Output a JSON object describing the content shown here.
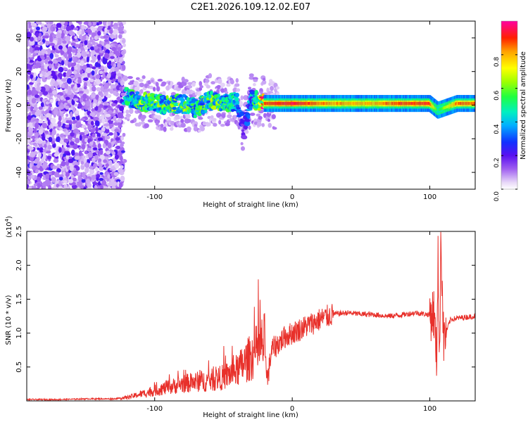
{
  "title": "C2E1.2026.109.12.02.E07",
  "chart_data": [
    {
      "type": "heatmap",
      "title": "C2E1.2026.109.12.02.E07",
      "xlabel": "Height of straight line (km)",
      "ylabel": "Frequency (Hz)",
      "xlim": [
        -193,
        133
      ],
      "ylim": [
        -50,
        50
      ],
      "xticks": [
        -100,
        0,
        100
      ],
      "yticks": [
        -40,
        -20,
        0,
        20,
        40
      ],
      "colorbar": {
        "label": "Normalized spectral amplitude",
        "range": [
          0,
          1
        ],
        "ticks": [
          "0.0",
          "0.2",
          "0.4",
          "0.6",
          "0.8"
        ],
        "tick_values": [
          0.0,
          0.2,
          0.4,
          0.6,
          0.8
        ]
      },
      "regions": [
        {
          "name": "broadband noise",
          "x_range": [
            -193,
            -122
          ],
          "y_range": [
            -50,
            50
          ],
          "amplitude": 0.15
        },
        {
          "name": "noisy band",
          "x_range": [
            -122,
            -20
          ],
          "y_center": 0,
          "amplitude": 0.45
        },
        {
          "name": "steady band",
          "x_range": [
            -20,
            133
          ],
          "y_center": 1,
          "amplitude": 0.8
        }
      ],
      "band_points": [
        {
          "x": -120,
          "y": 5,
          "amp": 0.45
        },
        {
          "x": -110,
          "y": 2,
          "amp": 0.6
        },
        {
          "x": -100,
          "y": 1,
          "amp": 0.55
        },
        {
          "x": -90,
          "y": 0,
          "amp": 0.55
        },
        {
          "x": -80,
          "y": 1,
          "amp": 0.6
        },
        {
          "x": -70,
          "y": -2,
          "amp": 0.5
        },
        {
          "x": -60,
          "y": 3,
          "amp": 0.6
        },
        {
          "x": -50,
          "y": 1,
          "amp": 0.55
        },
        {
          "x": -40,
          "y": 2,
          "amp": 0.45
        },
        {
          "x": -35,
          "y": -15,
          "amp": 0.2
        },
        {
          "x": -30,
          "y": 4,
          "amp": 0.4
        },
        {
          "x": -20,
          "y": 1,
          "amp": 0.9
        },
        {
          "x": -10,
          "y": 1,
          "amp": 0.9
        },
        {
          "x": 0,
          "y": 1,
          "amp": 0.95
        },
        {
          "x": 10,
          "y": 1,
          "amp": 0.9
        },
        {
          "x": 20,
          "y": 1,
          "amp": 0.85
        },
        {
          "x": 40,
          "y": 1,
          "amp": 0.8
        },
        {
          "x": 60,
          "y": 1,
          "amp": 0.8
        },
        {
          "x": 80,
          "y": 1,
          "amp": 0.9
        },
        {
          "x": 100,
          "y": 1,
          "amp": 0.9
        },
        {
          "x": 106,
          "y": -3,
          "amp": 0.5
        },
        {
          "x": 120,
          "y": 1,
          "amp": 0.85
        },
        {
          "x": 133,
          "y": 1,
          "amp": 0.85
        }
      ]
    },
    {
      "type": "line",
      "xlabel": "Height of straight line (km)",
      "ylabel": "SNR (10 * v/v)",
      "y_multiplier": "(x10",
      "y_exponent": "4",
      "y_multiplier_close": ")",
      "xlim": [
        -193,
        133
      ],
      "ylim": [
        0,
        2.5
      ],
      "xticks": [
        -100,
        0,
        100
      ],
      "yticks": [
        0.5,
        1.0,
        1.5,
        2.0,
        2.5
      ],
      "ytick_labels": [
        "0.5",
        "1.0",
        "1.5",
        "2.0",
        "2.5"
      ],
      "color": "#e8302a",
      "series": [
        {
          "name": "SNR",
          "x": [
            -193,
            -170,
            -150,
            -130,
            -120,
            -110,
            -100,
            -90,
            -80,
            -70,
            -60,
            -50,
            -40,
            -35,
            -30,
            -25,
            -20,
            -18,
            -15,
            -10,
            -5,
            0,
            5,
            10,
            20,
            30,
            40,
            50,
            60,
            70,
            80,
            90,
            100,
            103,
            105,
            106,
            107,
            108,
            110,
            115,
            120,
            133
          ],
          "y": [
            0.02,
            0.02,
            0.03,
            0.03,
            0.05,
            0.1,
            0.15,
            0.2,
            0.25,
            0.28,
            0.3,
            0.35,
            0.45,
            0.55,
            0.65,
            0.75,
            0.85,
            0.3,
            0.75,
            0.85,
            0.95,
            1.0,
            1.05,
            1.1,
            1.2,
            1.28,
            1.3,
            1.28,
            1.27,
            1.25,
            1.27,
            1.3,
            1.27,
            1.3,
            0.6,
            2.3,
            0.3,
            2.5,
            0.9,
            1.2,
            1.22,
            1.25
          ]
        }
      ]
    }
  ]
}
